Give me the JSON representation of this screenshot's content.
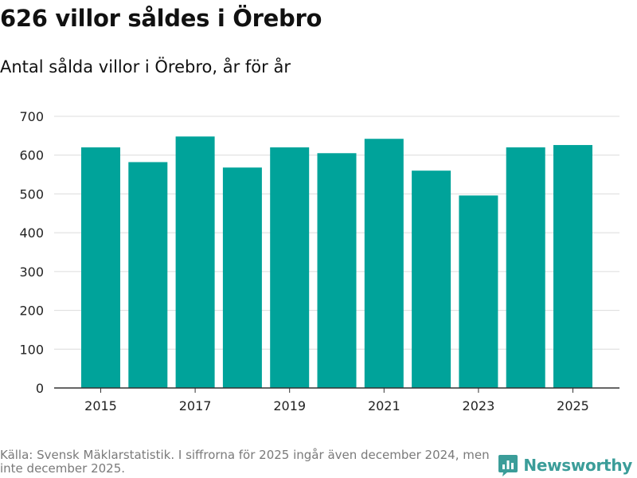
{
  "header": {
    "title": "626 villor såldes i Örebro",
    "subtitle": "Antal sålda villor i Örebro, år för år"
  },
  "chart_data": {
    "type": "bar",
    "categories": [
      "2015",
      "2016",
      "2017",
      "2018",
      "2019",
      "2020",
      "2021",
      "2022",
      "2023",
      "2024",
      "2025"
    ],
    "values": [
      620,
      582,
      648,
      568,
      620,
      605,
      642,
      560,
      496,
      620,
      626
    ],
    "x_tick_labels": [
      "2015",
      "2017",
      "2019",
      "2021",
      "2023",
      "2025"
    ],
    "y_ticks": [
      0,
      100,
      200,
      300,
      400,
      500,
      600,
      700
    ],
    "ylim": [
      0,
      700
    ],
    "xlabel": "",
    "ylabel": "",
    "grid": true,
    "bar_color": "#00a39a"
  },
  "footer": {
    "source": "Källa: Svensk Mäklarstatistik. I siffrorna för 2025 ingår även december 2024, men inte december 2025."
  },
  "brand": {
    "name": "Newsworthy",
    "icon": "newsworthy-logo-icon",
    "color": "#3b9d99"
  }
}
